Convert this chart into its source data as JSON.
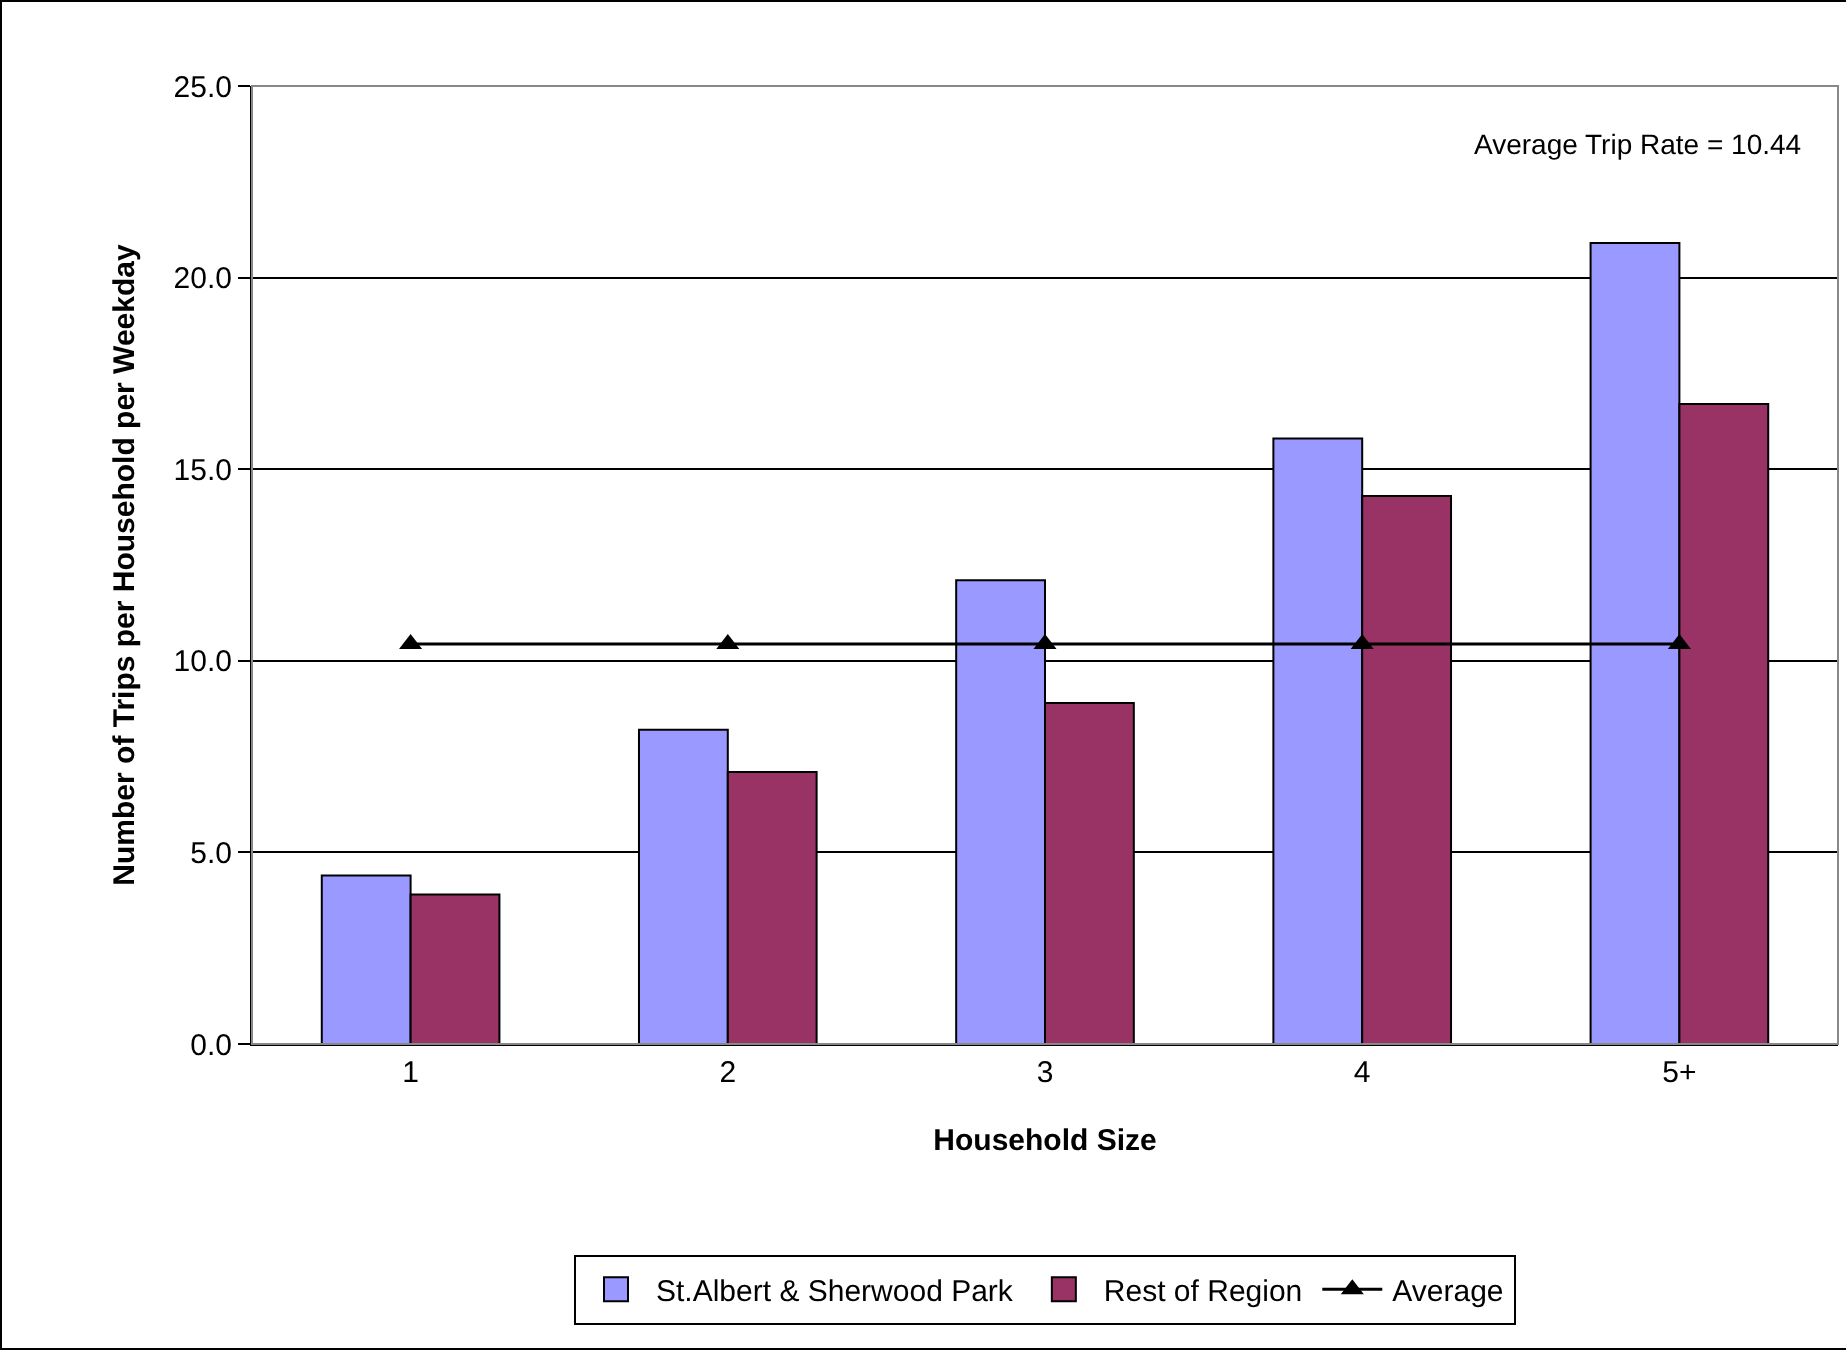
{
  "chart_data": {
    "type": "bar",
    "xlabel": "Household Size",
    "ylabel": "Number of Trips per Household per Weekday",
    "categories": [
      "1",
      "2",
      "3",
      "4",
      "5+"
    ],
    "series": [
      {
        "name": "St.Albert & Sherwood Park",
        "color": "#9999ff",
        "values": [
          4.4,
          8.2,
          12.1,
          15.8,
          20.9
        ]
      },
      {
        "name": "Rest of Region",
        "color": "#993366",
        "values": [
          3.9,
          7.1,
          8.9,
          14.3,
          16.7
        ]
      },
      {
        "name": "Average",
        "type": "line",
        "color": "#000000",
        "marker": "triangle",
        "values": [
          10.44,
          10.44,
          10.44,
          10.44,
          10.44
        ]
      }
    ],
    "annotations": [
      "Average Trip Rate = 10.44"
    ],
    "ylim": [
      0,
      25
    ],
    "yticks": [
      {
        "value": 0,
        "label": "0.0"
      },
      {
        "value": 5,
        "label": "5.0"
      },
      {
        "value": 10,
        "label": "10.0"
      },
      {
        "value": 15,
        "label": "15.0"
      },
      {
        "value": 20,
        "label": "20.0"
      },
      {
        "value": 25,
        "label": "25.0"
      }
    ],
    "grid": "y",
    "legend": "bottom"
  }
}
